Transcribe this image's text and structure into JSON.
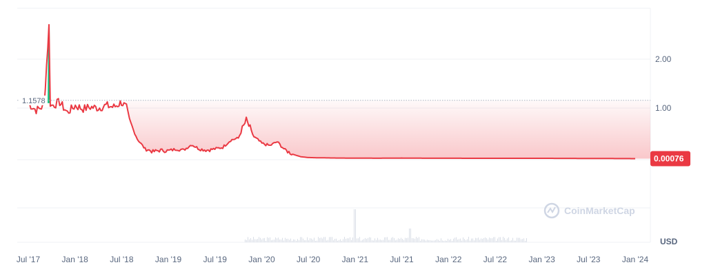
{
  "chart_data": {
    "type": "line",
    "x_ticks": [
      "Jul '17",
      "Jan '18",
      "Jul '18",
      "Jan '19",
      "Jul '19",
      "Jan '20",
      "Jul '20",
      "Jan '21",
      "Jul '21",
      "Jan '22",
      "Jul '22",
      "Jan '23",
      "Jul '23",
      "Jan '24"
    ],
    "y_ticks": [
      "2.00",
      "1.00"
    ],
    "y_unit": "USD",
    "open_price_label": "1.1578",
    "current_price_label": "0.00076",
    "watermark": "CoinMarketCap",
    "grid": true,
    "series": [
      {
        "x": [
          "2017-07",
          "2017-08",
          "2017-09",
          "2017-09-20",
          "2017-09-25",
          "2017-10",
          "2017-11",
          "2017-12",
          "2018-01",
          "2018-02",
          "2018-03",
          "2018-04",
          "2018-05",
          "2018-06",
          "2018-07",
          "2018-07-20",
          "2018-08",
          "2018-09",
          "2018-10",
          "2018-11",
          "2018-12",
          "2019-01",
          "2019-02",
          "2019-03",
          "2019-04",
          "2019-05",
          "2019-06",
          "2019-07",
          "2019-08",
          "2019-09",
          "2019-10",
          "2019-11",
          "2019-12",
          "2020-01",
          "2020-02",
          "2020-03",
          "2020-04",
          "2020-05",
          "2020-06",
          "2020-07",
          "2020-08",
          "2020-10",
          "2021-01",
          "2021-04",
          "2021-07",
          "2021-10",
          "2022-01",
          "2022-07",
          "2023-01",
          "2023-07",
          "2024-01"
        ],
        "y": [
          1.1,
          0.95,
          1.05,
          2.7,
          1.1,
          1.05,
          1.12,
          0.9,
          1.05,
          0.98,
          1.02,
          1.0,
          1.05,
          1.02,
          1.12,
          1.0,
          0.7,
          0.3,
          0.12,
          0.08,
          0.1,
          0.09,
          0.12,
          0.1,
          0.2,
          0.12,
          0.1,
          0.12,
          0.15,
          0.28,
          0.32,
          0.72,
          0.35,
          0.22,
          0.18,
          0.25,
          0.1,
          0.05,
          0.02,
          0.01,
          0.008,
          0.005,
          0.003,
          0.002,
          0.004,
          0.002,
          0.0015,
          0.0012,
          0.001,
          0.0009,
          0.00076
        ]
      }
    ]
  }
}
